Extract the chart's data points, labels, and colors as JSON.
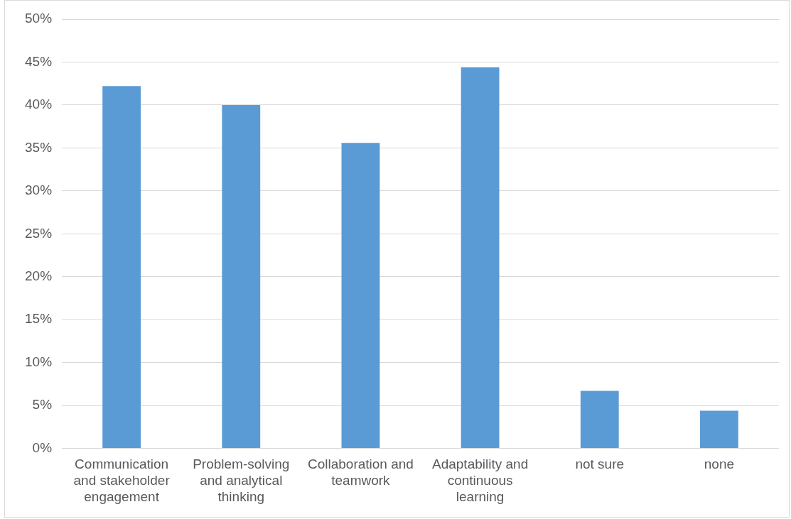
{
  "chart_data": {
    "type": "bar",
    "categories": [
      "Communication and stakeholder engagement",
      "Problem-solving and analytical thinking",
      "Collaboration and teamwork",
      "Adaptability and continuous learning",
      "not sure",
      "none"
    ],
    "values": [
      42.2,
      40.0,
      35.6,
      44.4,
      6.7,
      4.4
    ],
    "color": "#5b9bd5",
    "ylim": [
      0,
      50
    ],
    "yticks": [
      {
        "value": 0,
        "label": "0%"
      },
      {
        "value": 5,
        "label": "5%"
      },
      {
        "value": 10,
        "label": "10%"
      },
      {
        "value": 15,
        "label": "15%"
      },
      {
        "value": 20,
        "label": "20%"
      },
      {
        "value": 25,
        "label": "25%"
      },
      {
        "value": 30,
        "label": "30%"
      },
      {
        "value": 35,
        "label": "35%"
      },
      {
        "value": 40,
        "label": "40%"
      },
      {
        "value": 45,
        "label": "45%"
      },
      {
        "value": 50,
        "label": "50%"
      }
    ],
    "grid": "y",
    "legend": false
  }
}
